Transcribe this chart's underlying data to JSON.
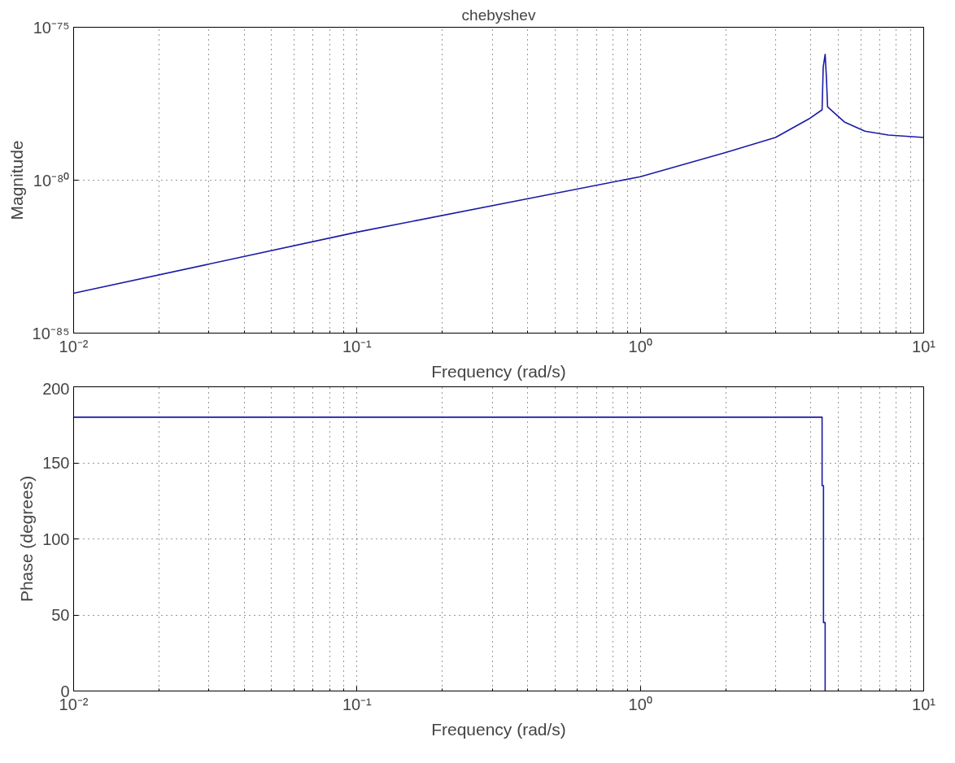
{
  "chart_data": [
    {
      "type": "line",
      "title": "chebyshev",
      "xlabel": "Frequency (rad/s)",
      "ylabel": "Magnitude",
      "log": "xy",
      "grid": true,
      "xlim": [
        0.01,
        10
      ],
      "xticks": [
        {
          "value": 0.01,
          "label": "10⁻²"
        },
        {
          "value": 0.1,
          "label": "10⁻¹"
        },
        {
          "value": 1,
          "label": "10⁰"
        },
        {
          "value": 10,
          "label": "10¹"
        }
      ],
      "ylim": [
        1e-85,
        1e-75
      ],
      "yticks": [
        {
          "value": 1e-85,
          "label": "10⁻⁸⁵"
        },
        {
          "value": 1e-80,
          "label": "10⁻⁸⁰"
        },
        {
          "value": 1e-75,
          "label": "10⁻⁷⁵"
        }
      ],
      "series": [
        {
          "color": "#1a1aa6",
          "x": [
            0.01,
            0.1,
            1,
            2,
            3,
            3.93,
            4.38,
            4.42,
            4.49,
            4.54,
            4.58,
            5.25,
            6.2,
            7.5,
            10
          ],
          "values": [
            2e-84,
            2e-82,
            1.3e-80,
            8e-80,
            2.5e-79,
            1e-78,
            2e-78,
            5e-77,
            1.3e-76,
            2e-77,
            2.5e-78,
            8e-79,
            4e-79,
            3e-79,
            2.5e-79
          ]
        }
      ]
    },
    {
      "type": "line",
      "xlabel": "Frequency (rad/s)",
      "ylabel": "Phase (degrees)",
      "log": "x",
      "grid": true,
      "xlim": [
        0.01,
        10
      ],
      "xticks": [
        {
          "value": 0.01,
          "label": "10⁻²"
        },
        {
          "value": 0.1,
          "label": "10⁻¹"
        },
        {
          "value": 1,
          "label": "10⁰"
        },
        {
          "value": 10,
          "label": "10¹"
        }
      ],
      "ylim": [
        0,
        200
      ],
      "yticks": [
        0,
        50,
        100,
        150,
        200
      ],
      "series": [
        {
          "color": "#1a1aa6",
          "x": [
            0.01,
            4.38,
            4.38,
            4.43,
            4.43,
            4.49,
            4.49
          ],
          "values": [
            180,
            180,
            135,
            135,
            45,
            45,
            0
          ]
        }
      ]
    }
  ]
}
